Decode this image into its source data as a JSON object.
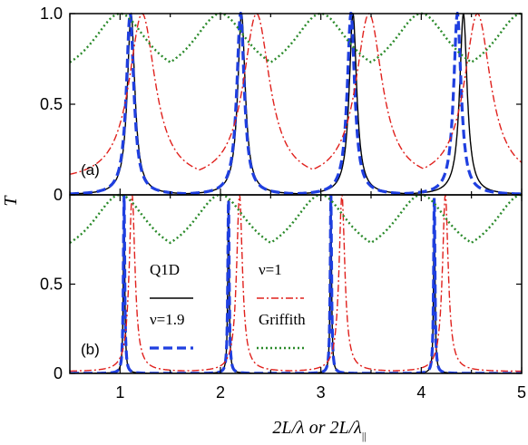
{
  "chart_data": {
    "type": "line",
    "xlabel": "2L/λ  or  2L/λ||",
    "ylabel": "T",
    "xlim": [
      0.5,
      5.0
    ],
    "x_ticks": [
      "1",
      "2",
      "3",
      "4",
      "5"
    ],
    "grid": false,
    "legend_position": "lower-middle of panel (b)",
    "panels": [
      {
        "label": "(a)",
        "ylim": [
          0,
          1.0
        ],
        "y_ticks": [
          "0",
          "0.5",
          "1.0"
        ],
        "series": [
          {
            "name": "Q1D",
            "color": "#000000",
            "dash": "solid",
            "peaks": [
              1.11,
              2.21,
              3.32,
              4.42
            ],
            "width": 0.045,
            "floor": 0.0
          },
          {
            "name": "ν=1.9",
            "color": "#1f3fe0",
            "dash": "dash",
            "peaks": [
              1.1,
              2.2,
              3.3,
              4.36
            ],
            "width": 0.045,
            "floor": 0.0
          },
          {
            "name": "ν=1",
            "color": "#e0201c",
            "dash": "dashdot",
            "peaks": [
              1.22,
              2.36,
              3.48,
              4.56
            ],
            "width": 0.16,
            "floor": 0.07
          },
          {
            "name": "Griffith",
            "color": "#2a8a2a",
            "dash": "dot",
            "peaks": [
              0.0,
              1.0,
              2.0,
              3.0,
              4.0,
              5.0
            ],
            "width": 0.35,
            "floor": 0.6
          }
        ]
      },
      {
        "label": "(b)",
        "ylim": [
          0,
          1.0
        ],
        "y_ticks": [
          "0",
          "0.5",
          ""
        ],
        "series": [
          {
            "name": "Q1D",
            "color": "#000000",
            "dash": "solid",
            "peaks": [
              1.04,
              2.08,
              3.1,
              4.13
            ],
            "width": 0.008,
            "floor": 0.0
          },
          {
            "name": "ν=1.9",
            "color": "#1f3fe0",
            "dash": "dash",
            "peaks": [
              1.04,
              2.08,
              3.1,
              4.13
            ],
            "width": 0.008,
            "floor": 0.0
          },
          {
            "name": "ν=1",
            "color": "#e0201c",
            "dash": "dashdot",
            "peaks": [
              1.12,
              2.19,
              3.21,
              4.24
            ],
            "width": 0.035,
            "floor": 0.01
          },
          {
            "name": "Griffith",
            "color": "#2a8a2a",
            "dash": "dot",
            "peaks": [
              0.0,
              1.0,
              2.0,
              3.0,
              4.0,
              5.0
            ],
            "width": 0.35,
            "floor": 0.6
          }
        ]
      }
    ],
    "legend": [
      {
        "name": "Q1D",
        "color": "#000000",
        "dash": "solid"
      },
      {
        "name": "ν=1",
        "color": "#e0201c",
        "dash": "dashdot"
      },
      {
        "name": "ν=1.9",
        "color": "#1f3fe0",
        "dash": "dash"
      },
      {
        "name": "Griffith",
        "color": "#2a8a2a",
        "dash": "dot"
      }
    ]
  }
}
